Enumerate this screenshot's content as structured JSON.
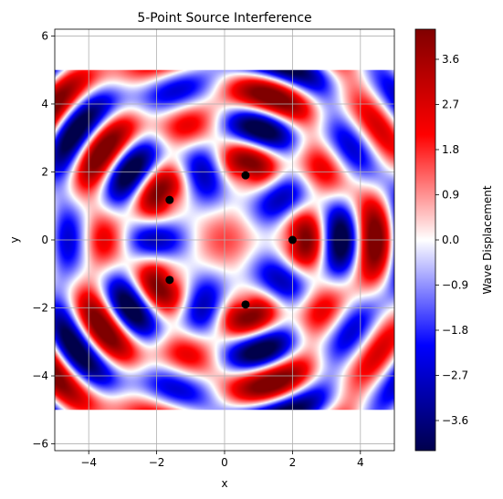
{
  "chart_data": {
    "type": "heatmap",
    "title": "5-Point Source Interference",
    "xlabel": "x",
    "ylabel": "y",
    "xlim": [
      -5,
      5
    ],
    "ylim": [
      -6.2,
      6.2
    ],
    "data_extent": {
      "x": [
        -5,
        5
      ],
      "y": [
        -5,
        5
      ]
    },
    "grid": true,
    "x_ticks": [
      {
        "value": -4,
        "label": "−4"
      },
      {
        "value": -2,
        "label": "−2"
      },
      {
        "value": 0,
        "label": "0"
      },
      {
        "value": 2,
        "label": "2"
      },
      {
        "value": 4,
        "label": "4"
      }
    ],
    "y_ticks": [
      {
        "value": -6,
        "label": "−6"
      },
      {
        "value": -4,
        "label": "−4"
      },
      {
        "value": -2,
        "label": "−2"
      },
      {
        "value": 0,
        "label": "0"
      },
      {
        "value": 2,
        "label": "2"
      },
      {
        "value": 4,
        "label": "4"
      },
      {
        "value": 6,
        "label": "6"
      }
    ],
    "sources": [
      {
        "x": 2.0,
        "y": 0.0
      },
      {
        "x": 0.618,
        "y": 1.902
      },
      {
        "x": -1.618,
        "y": 1.176
      },
      {
        "x": -1.618,
        "y": -1.176
      },
      {
        "x": 0.618,
        "y": -1.902
      }
    ],
    "wave_number": 3.3,
    "source_color": "#000000",
    "colormap": "seismic",
    "colormap_stops": [
      {
        "v": -4.2,
        "color": "#00004c"
      },
      {
        "v": -2.1,
        "color": "#0000ff"
      },
      {
        "v": 0.0,
        "color": "#ffffff"
      },
      {
        "v": 2.1,
        "color": "#ff0000"
      },
      {
        "v": 4.2,
        "color": "#800000"
      }
    ],
    "colorbar": {
      "label": "Wave Displacement",
      "range": [
        -4.2,
        4.2
      ],
      "ticks": [
        {
          "value": -3.6,
          "label": "−3.6"
        },
        {
          "value": -2.7,
          "label": "−2.7"
        },
        {
          "value": -1.8,
          "label": "−1.8"
        },
        {
          "value": -0.9,
          "label": "−0.9"
        },
        {
          "value": 0.0,
          "label": "0.0"
        },
        {
          "value": 0.9,
          "label": "0.9"
        },
        {
          "value": 1.8,
          "label": "1.8"
        },
        {
          "value": 2.7,
          "label": "2.7"
        },
        {
          "value": 3.6,
          "label": "3.6"
        }
      ]
    }
  }
}
